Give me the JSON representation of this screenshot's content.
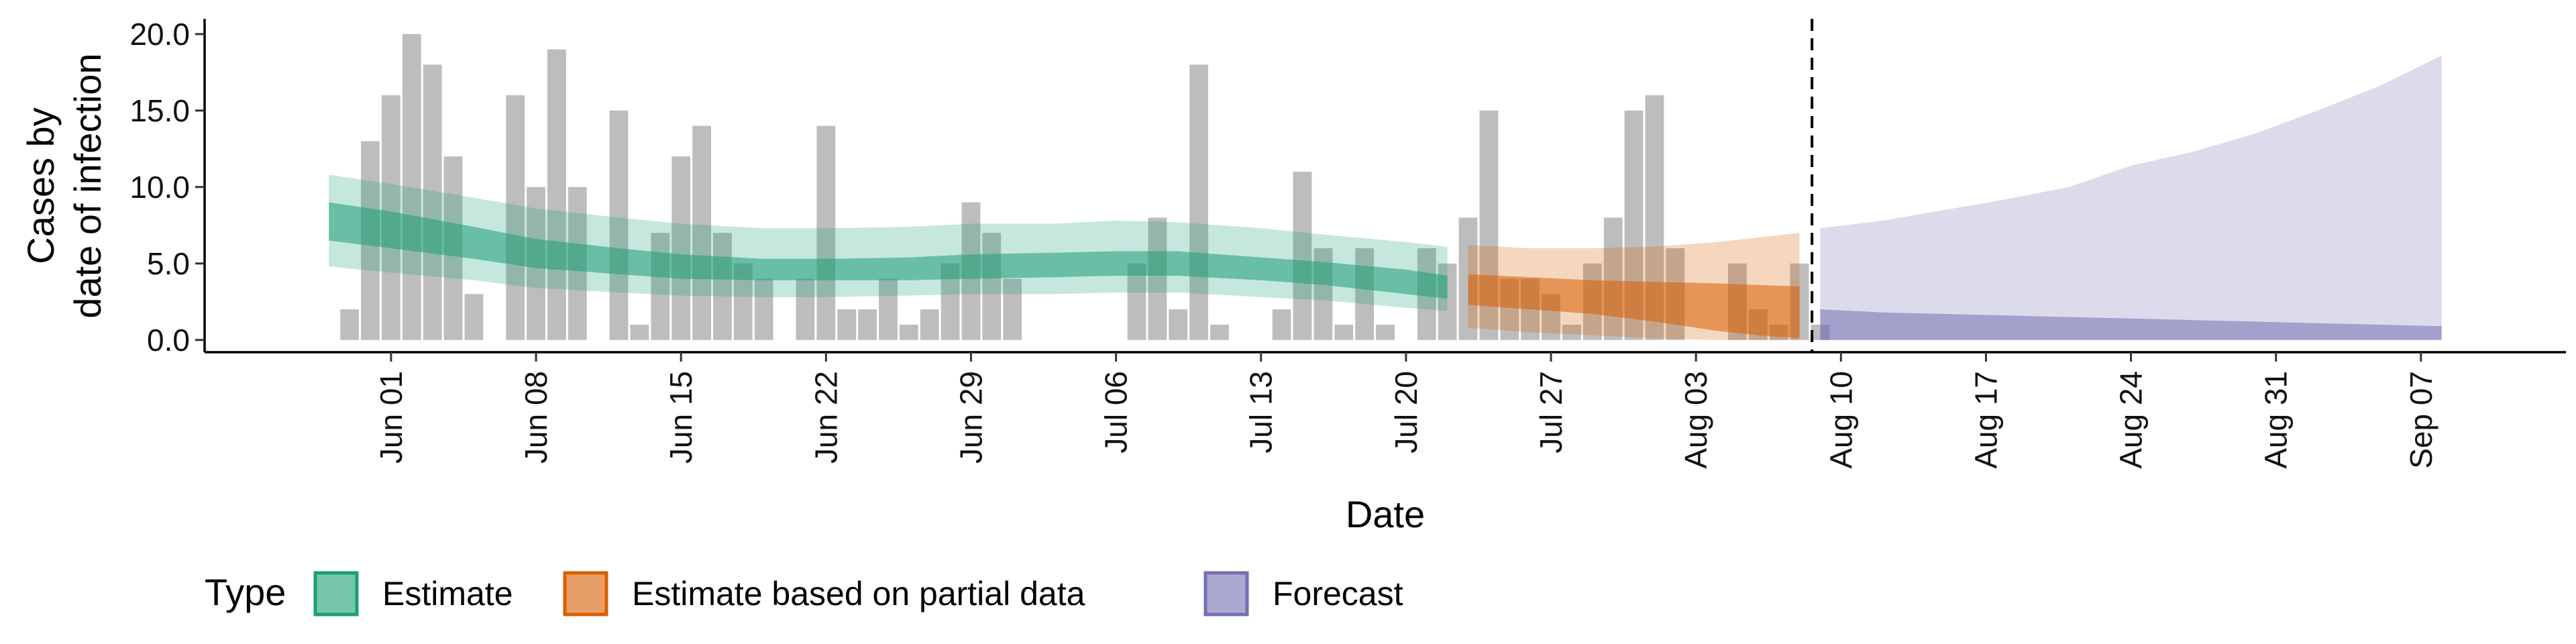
{
  "chart_data": {
    "type": "area",
    "xlabel": "Date",
    "ylabel_lines": [
      "Cases by",
      "date of infection"
    ],
    "ylim": [
      -0.8,
      21.0
    ],
    "xlim": [
      "2020-05-23",
      "2020-09-14"
    ],
    "y_ticks": [
      0,
      5,
      10,
      15,
      20
    ],
    "y_tick_labels": [
      "0.0",
      "5.0",
      "10.0",
      "15.0",
      "20.0"
    ],
    "x_ticks": [
      "2020-06-01",
      "2020-06-08",
      "2020-06-15",
      "2020-06-22",
      "2020-06-29",
      "2020-07-06",
      "2020-07-13",
      "2020-07-20",
      "2020-07-27",
      "2020-08-03",
      "2020-08-10",
      "2020-08-17",
      "2020-08-24",
      "2020-08-31",
      "2020-09-07"
    ],
    "x_tick_labels": [
      "Jun 01",
      "Jun 08",
      "Jun 15",
      "Jun 22",
      "Jun 29",
      "Jul 06",
      "Jul 13",
      "Jul 20",
      "Jul 27",
      "Aug 03",
      "Aug 10",
      "Aug 17",
      "Aug 24",
      "Aug 31",
      "Sep 07"
    ],
    "forecast_start": "2020-08-09",
    "reported_cases": {
      "start_date": "2020-05-30",
      "values": [
        2,
        13,
        16,
        20,
        18,
        12,
        3,
        0,
        16,
        10,
        19,
        10,
        0,
        15,
        1,
        7,
        12,
        14,
        7,
        5,
        4,
        0,
        4,
        14,
        2,
        2,
        4,
        1,
        2,
        5,
        9,
        7,
        4,
        0,
        0,
        0,
        0,
        0,
        5,
        8,
        2,
        18,
        1,
        0,
        0,
        2,
        11,
        6,
        1,
        6,
        1,
        0,
        6,
        5,
        8,
        15,
        4,
        4,
        3,
        1,
        5,
        8,
        15,
        16,
        6,
        0,
        0,
        5,
        2,
        1,
        5,
        1
      ]
    },
    "series": [
      {
        "name": "Estimate",
        "color": "#1b9e77",
        "dates": [
          "2020-05-29",
          "2020-06-01",
          "2020-06-05",
          "2020-06-08",
          "2020-06-12",
          "2020-06-15",
          "2020-06-19",
          "2020-06-22",
          "2020-06-26",
          "2020-06-29",
          "2020-07-03",
          "2020-07-06",
          "2020-07-09",
          "2020-07-13",
          "2020-07-16",
          "2020-07-20",
          "2020-07-22"
        ],
        "median": [
          8.0,
          7.4,
          6.4,
          5.6,
          5.2,
          4.8,
          4.6,
          4.6,
          4.6,
          4.8,
          4.8,
          5.0,
          5.0,
          4.6,
          4.4,
          3.8,
          3.5
        ],
        "lower_50": [
          6.5,
          6.0,
          5.3,
          4.7,
          4.3,
          4.0,
          3.9,
          3.9,
          3.9,
          4.0,
          4.1,
          4.2,
          4.2,
          3.9,
          3.6,
          3.0,
          2.7
        ],
        "upper_50": [
          9.0,
          8.4,
          7.4,
          6.6,
          6.0,
          5.6,
          5.3,
          5.3,
          5.4,
          5.6,
          5.7,
          5.8,
          5.8,
          5.4,
          5.1,
          4.6,
          4.2
        ],
        "lower_90": [
          4.8,
          4.4,
          3.9,
          3.4,
          3.1,
          2.9,
          2.8,
          2.8,
          2.9,
          3.0,
          3.0,
          3.1,
          3.1,
          2.8,
          2.6,
          2.1,
          1.9
        ],
        "upper_90": [
          10.8,
          10.2,
          9.3,
          8.6,
          8.0,
          7.6,
          7.3,
          7.3,
          7.4,
          7.6,
          7.6,
          7.8,
          7.7,
          7.3,
          6.9,
          6.4,
          6.1
        ]
      },
      {
        "name": "Estimate based on partial data",
        "color": "#d95f02",
        "dates": [
          "2020-07-23",
          "2020-07-26",
          "2020-07-29",
          "2020-08-01",
          "2020-08-04",
          "2020-08-06",
          "2020-08-08"
        ],
        "median": [
          3.3,
          3.0,
          2.8,
          2.6,
          2.2,
          1.9,
          1.6
        ],
        "lower_50": [
          2.3,
          2.0,
          1.7,
          1.2,
          0.6,
          0.3,
          0.1
        ],
        "upper_50": [
          4.3,
          4.1,
          3.9,
          3.8,
          3.7,
          3.6,
          3.5
        ],
        "lower_90": [
          0.8,
          0.5,
          0.3,
          0.1,
          0.0,
          0.0,
          0.0
        ],
        "upper_90": [
          6.2,
          6.0,
          6.0,
          6.1,
          6.4,
          6.7,
          7.0
        ]
      },
      {
        "name": "Forecast",
        "color": "#7570b3",
        "dates": [
          "2020-08-09",
          "2020-08-12",
          "2020-08-15",
          "2020-08-18",
          "2020-08-21",
          "2020-08-24",
          "2020-08-27",
          "2020-08-30",
          "2020-09-02",
          "2020-09-05",
          "2020-09-08"
        ],
        "lower_90": [
          0.0,
          0.0,
          0.0,
          0.0,
          0.0,
          0.0,
          0.0,
          0.0,
          0.0,
          0.0,
          0.0
        ],
        "upper_90": [
          7.3,
          7.8,
          8.5,
          9.2,
          10.0,
          11.4,
          12.3,
          13.5,
          15.0,
          16.6,
          18.6
        ],
        "lower_50": [
          0.0,
          0.0,
          0.0,
          0.0,
          0.0,
          0.0,
          0.0,
          0.0,
          0.0,
          0.0,
          0.0
        ],
        "upper_50": [
          2.0,
          1.8,
          1.7,
          1.6,
          1.5,
          1.4,
          1.3,
          1.2,
          1.1,
          1.0,
          0.9
        ]
      }
    ],
    "legend": {
      "title": "Type",
      "position": "bottom",
      "items": [
        {
          "label": "Estimate",
          "color": "#1b9e77"
        },
        {
          "label": "Estimate based on partial data",
          "color": "#d95f02"
        },
        {
          "label": "Forecast",
          "color": "#7570b3"
        }
      ]
    }
  }
}
